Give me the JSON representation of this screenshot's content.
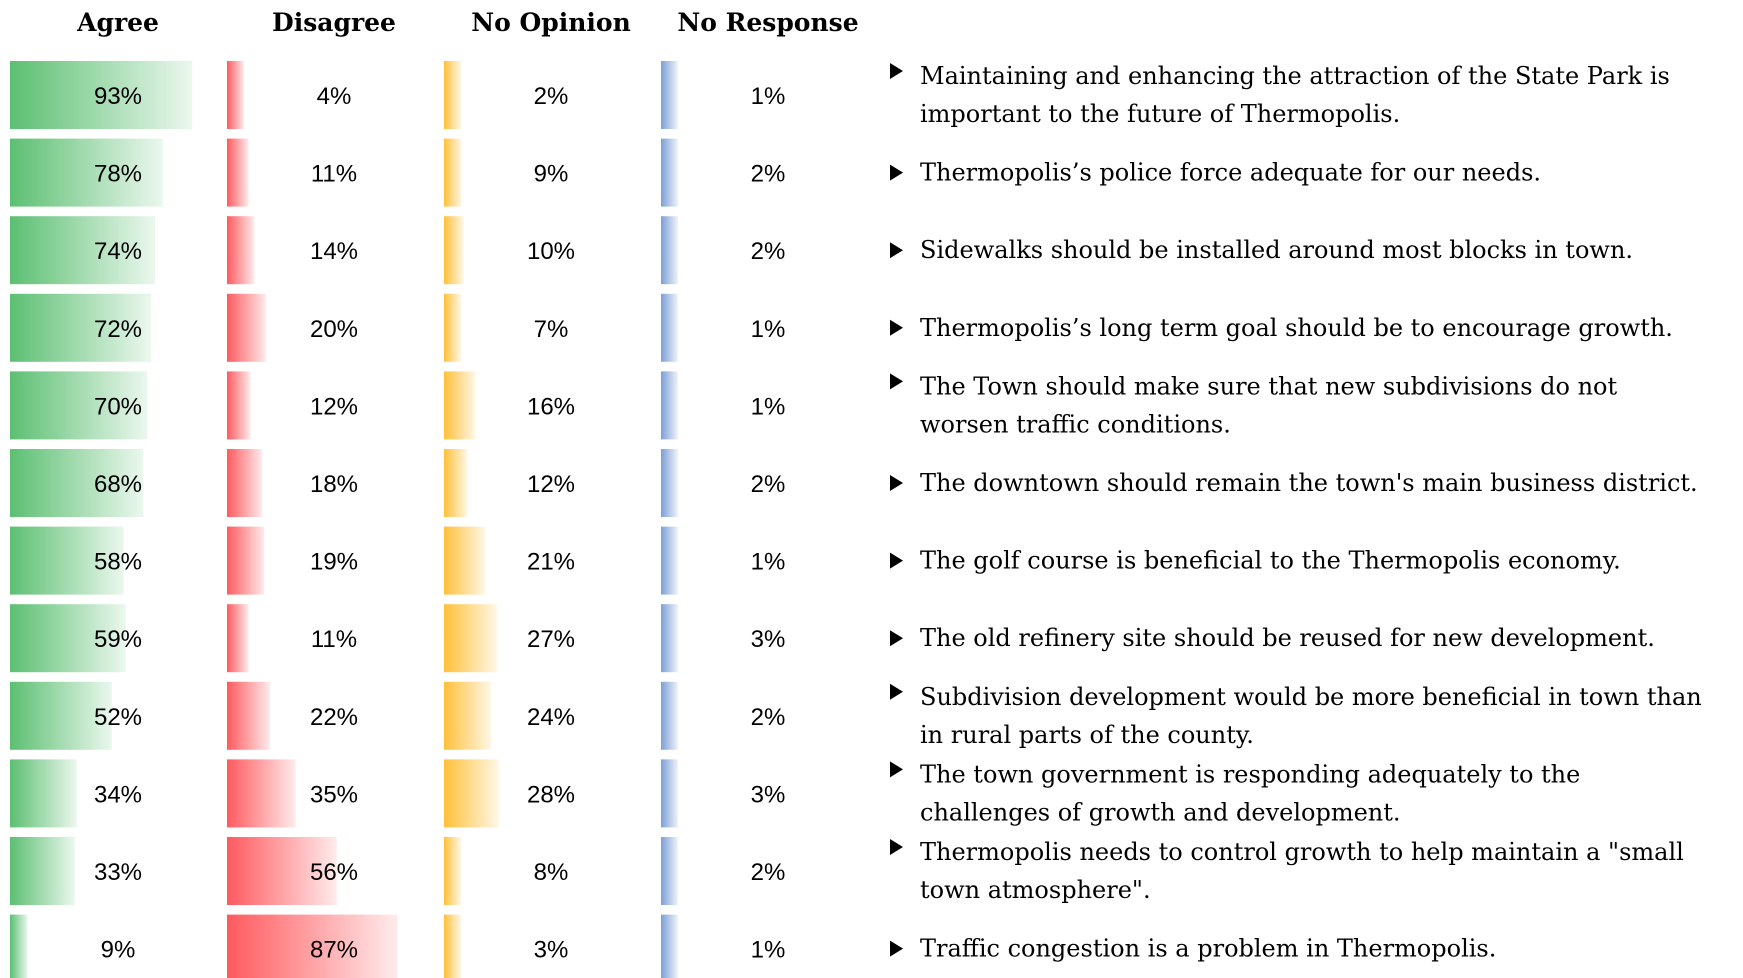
{
  "chart_data": {
    "type": "bar",
    "orientation": "horizontal",
    "value_suffix": "%",
    "xlim": [
      0,
      100
    ],
    "grid": false,
    "legend": "none",
    "columns": [
      "Agree",
      "Disagree",
      "No Opinion",
      "No Response"
    ],
    "colors": {
      "Agree": "#5cbf72",
      "Disagree": "#ff5a5f",
      "No Opinion": "#ffc03a",
      "No Response": "#7c9fd6"
    },
    "categories": [
      [
        "Maintaining and enhancing the attraction of the State Park is",
        "important to the future of Thermopolis."
      ],
      [
        "Thermopolis’s police force adequate for our needs."
      ],
      [
        "Sidewalks should be installed around most blocks in town."
      ],
      [
        "Thermopolis’s long term goal should be to encourage growth."
      ],
      [
        "The Town should make sure that new subdivisions do not",
        "worsen traffic conditions."
      ],
      [
        "The downtown should remain the town's main business district."
      ],
      [
        "The golf course is beneficial to the Thermopolis economy."
      ],
      [
        "The old refinery site should be reused for new development."
      ],
      [
        "Subdivision development would be more beneficial in town than",
        "in rural parts of the county."
      ],
      [
        "The town government is responding adequately to the",
        "challenges of growth and development."
      ],
      [
        "Thermopolis needs to control growth to help maintain a \"small",
        "town atmosphere\"."
      ],
      [
        "Traffic congestion is a problem in Thermopolis."
      ]
    ],
    "series": [
      {
        "name": "Agree",
        "values": [
          93,
          78,
          74,
          72,
          70,
          68,
          58,
          59,
          52,
          34,
          33,
          9
        ]
      },
      {
        "name": "Disagree",
        "values": [
          4,
          11,
          14,
          20,
          12,
          18,
          19,
          11,
          22,
          35,
          56,
          87
        ]
      },
      {
        "name": "No Opinion",
        "values": [
          2,
          9,
          10,
          7,
          16,
          12,
          21,
          27,
          24,
          28,
          8,
          3
        ]
      },
      {
        "name": "No Response",
        "values": [
          1,
          2,
          2,
          1,
          1,
          2,
          1,
          3,
          2,
          3,
          2,
          1
        ]
      }
    ]
  }
}
